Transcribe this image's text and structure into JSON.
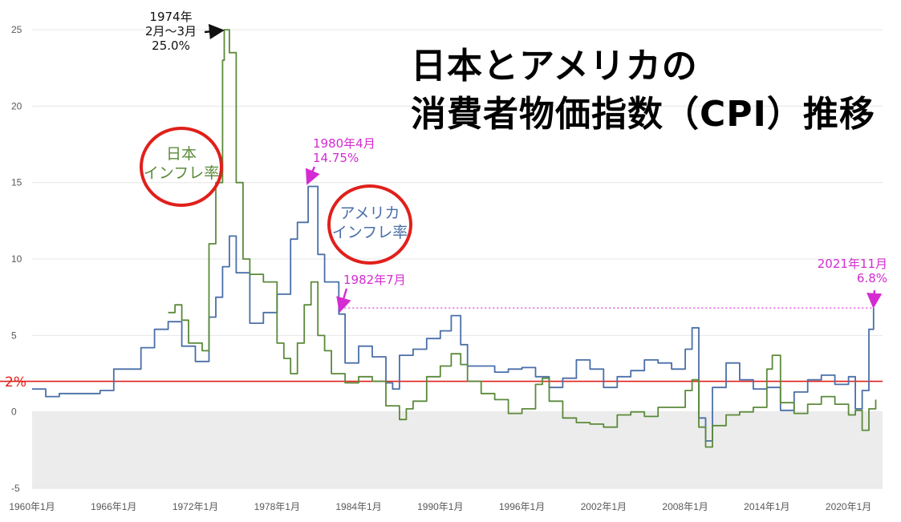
{
  "title": {
    "line1": "日本とアメリカの",
    "line2": "消費者物価指数（CPI）推移"
  },
  "colors": {
    "us": "#4a6fa8",
    "japan": "#5b8a3a",
    "annotation": "#d42bd2",
    "target": "#e0201b",
    "negative_band": "#ececec",
    "grid": "#e6e6e6"
  },
  "labels": {
    "japan_series": [
      "日本",
      "インフレ率"
    ],
    "us_series": [
      "アメリカ",
      "インフレ率"
    ],
    "two_percent": "2%"
  },
  "annotations": {
    "japan_peak": [
      "1974年",
      "2月～3月",
      "25.0%"
    ],
    "us_peak_1980": [
      "1980年4月",
      "14.75%"
    ],
    "us_1982": "1982年7月",
    "us_2021": [
      "2021年11月",
      "6.8%"
    ]
  },
  "chart_data": {
    "type": "line",
    "x_axis_ticks": [
      "1960年1月",
      "1966年1月",
      "1972年1月",
      "1978年1月",
      "1984年1月",
      "1990年1月",
      "1996年1月",
      "2002年1月",
      "2008年1月",
      "2014年1月",
      "2020年1月"
    ],
    "y_axis_ticks": [
      -5,
      0,
      5,
      10,
      15,
      20,
      25
    ],
    "xlim": [
      1960.0,
      2022.5
    ],
    "ylim": [
      -5,
      26
    ],
    "reference_line": 2,
    "series": [
      {
        "key": "us",
        "x": [
          1960.0,
          1961.0,
          1962.0,
          1963.0,
          1964.0,
          1965.0,
          1966.0,
          1967.0,
          1968.0,
          1969.0,
          1970.0,
          1971.0,
          1972.0,
          1973.0,
          1973.5,
          1974.0,
          1974.5,
          1975.0,
          1976.0,
          1977.0,
          1978.0,
          1979.0,
          1979.5,
          1980.29,
          1981.0,
          1981.5,
          1982.54,
          1983.0,
          1984.0,
          1985.0,
          1986.0,
          1986.5,
          1987.0,
          1988.0,
          1989.0,
          1990.0,
          1990.8,
          1991.5,
          1992.0,
          1993.0,
          1994.0,
          1995.0,
          1996.0,
          1997.0,
          1998.0,
          1999.0,
          2000.0,
          2001.0,
          2002.0,
          2003.0,
          2004.0,
          2005.0,
          2006.0,
          2007.0,
          2008.0,
          2008.5,
          2009.0,
          2009.5,
          2010.0,
          2011.0,
          2012.0,
          2013.0,
          2014.0,
          2015.0,
          2016.0,
          2017.0,
          2018.0,
          2019.0,
          2020.0,
          2020.5,
          2021.0,
          2021.5,
          2021.84
        ],
        "y": [
          1.5,
          1.0,
          1.2,
          1.2,
          1.2,
          1.4,
          2.8,
          2.8,
          4.2,
          5.4,
          5.9,
          4.3,
          3.3,
          6.2,
          7.5,
          9.5,
          11.5,
          9.1,
          5.8,
          6.5,
          7.7,
          11.3,
          12.4,
          14.75,
          10.3,
          8.5,
          6.4,
          3.2,
          4.3,
          3.6,
          1.9,
          1.5,
          3.7,
          4.1,
          4.8,
          5.3,
          6.3,
          4.4,
          3.0,
          3.0,
          2.6,
          2.8,
          2.9,
          2.3,
          1.6,
          2.2,
          3.4,
          2.8,
          1.6,
          2.3,
          2.7,
          3.4,
          3.2,
          2.8,
          4.1,
          5.5,
          -0.4,
          -1.9,
          1.6,
          3.2,
          2.1,
          1.5,
          1.6,
          0.1,
          1.3,
          2.1,
          2.4,
          1.8,
          2.3,
          0.2,
          1.4,
          5.4,
          6.8
        ]
      },
      {
        "key": "japan",
        "x": [
          1970.0,
          1970.5,
          1971.0,
          1971.5,
          1972.0,
          1972.5,
          1973.0,
          1973.5,
          1974.0,
          1974.12,
          1974.5,
          1975.0,
          1975.5,
          1976.0,
          1977.0,
          1978.0,
          1978.5,
          1979.0,
          1979.5,
          1980.0,
          1980.5,
          1981.0,
          1981.5,
          1982.0,
          1983.0,
          1984.0,
          1985.0,
          1986.0,
          1987.0,
          1987.5,
          1988.0,
          1989.0,
          1990.0,
          1990.8,
          1991.5,
          1992.0,
          1993.0,
          1994.0,
          1995.0,
          1996.0,
          1997.0,
          1997.5,
          1998.0,
          1999.0,
          2000.0,
          2001.0,
          2002.0,
          2003.0,
          2004.0,
          2005.0,
          2006.0,
          2007.0,
          2008.0,
          2008.5,
          2009.0,
          2009.5,
          2010.0,
          2011.0,
          2012.0,
          2013.0,
          2014.0,
          2014.4,
          2015.0,
          2016.0,
          2017.0,
          2018.0,
          2019.0,
          2020.0,
          2020.5,
          2021.0,
          2021.5,
          2022.0
        ],
        "y": [
          6.5,
          7.0,
          6.0,
          4.5,
          4.5,
          4.0,
          11.0,
          15.0,
          23.0,
          25.0,
          23.5,
          15.0,
          10.0,
          9.0,
          8.5,
          4.5,
          3.5,
          2.5,
          4.5,
          7.0,
          8.5,
          5.0,
          4.0,
          2.5,
          1.9,
          2.3,
          2.0,
          0.4,
          -0.5,
          0.2,
          0.7,
          2.3,
          3.0,
          3.8,
          3.1,
          2.0,
          1.2,
          0.8,
          -0.1,
          0.2,
          1.8,
          2.2,
          0.7,
          -0.4,
          -0.7,
          -0.8,
          -1.0,
          -0.2,
          0.0,
          -0.3,
          0.3,
          0.3,
          1.4,
          2.1,
          -1.0,
          -2.3,
          -0.9,
          -0.2,
          0.0,
          0.3,
          2.8,
          3.7,
          0.6,
          -0.1,
          0.5,
          1.0,
          0.5,
          -0.2,
          0.1,
          -1.2,
          0.2,
          0.8
        ]
      }
    ]
  }
}
